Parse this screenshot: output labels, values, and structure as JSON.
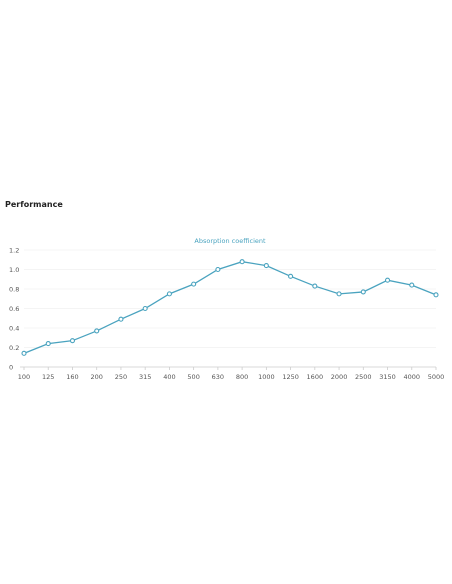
{
  "section": {
    "title": "Performance"
  },
  "chart_data": {
    "type": "line",
    "title": "",
    "xlabel": "",
    "ylabel": "",
    "categories": [
      "100",
      "125",
      "160",
      "200",
      "250",
      "315",
      "400",
      "500",
      "630",
      "800",
      "1000",
      "1250",
      "1600",
      "2000",
      "2500",
      "3150",
      "4000",
      "5000"
    ],
    "series": [
      {
        "name": "Absorption coefficient",
        "values": [
          0.14,
          0.24,
          0.27,
          0.37,
          0.49,
          0.6,
          0.75,
          0.85,
          1.0,
          1.08,
          1.04,
          0.93,
          0.83,
          0.75,
          0.77,
          0.89,
          0.84,
          0.74
        ],
        "color": "#4aa3bf"
      }
    ],
    "yticks": [
      "0",
      "0.2",
      "0.4",
      "0.6",
      "0.8",
      "1.0",
      "1.2"
    ],
    "ylim": [
      0,
      1.2
    ],
    "grid": true,
    "legend": "top-center"
  }
}
